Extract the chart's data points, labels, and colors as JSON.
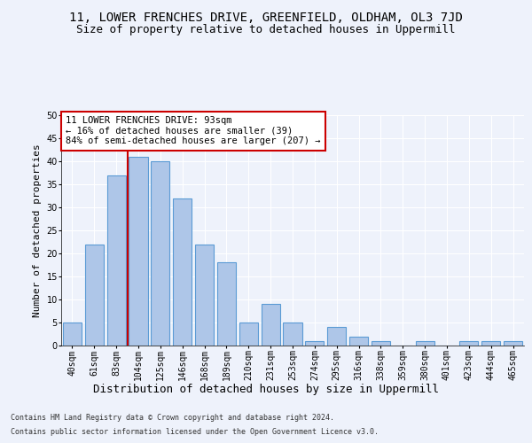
{
  "title1": "11, LOWER FRENCHES DRIVE, GREENFIELD, OLDHAM, OL3 7JD",
  "title2": "Size of property relative to detached houses in Uppermill",
  "xlabel": "Distribution of detached houses by size in Uppermill",
  "ylabel": "Number of detached properties",
  "categories": [
    "40sqm",
    "61sqm",
    "83sqm",
    "104sqm",
    "125sqm",
    "146sqm",
    "168sqm",
    "189sqm",
    "210sqm",
    "231sqm",
    "253sqm",
    "274sqm",
    "295sqm",
    "316sqm",
    "338sqm",
    "359sqm",
    "380sqm",
    "401sqm",
    "423sqm",
    "444sqm",
    "465sqm"
  ],
  "values": [
    5,
    22,
    37,
    41,
    40,
    32,
    22,
    18,
    5,
    9,
    5,
    1,
    4,
    2,
    1,
    0,
    1,
    0,
    1,
    1,
    1
  ],
  "bar_color": "#aec6e8",
  "bar_edge_color": "#5b9bd5",
  "ylim": [
    0,
    50
  ],
  "yticks": [
    0,
    5,
    10,
    15,
    20,
    25,
    30,
    35,
    40,
    45,
    50
  ],
  "red_line_x": 2.5,
  "annotation_text": "11 LOWER FRENCHES DRIVE: 93sqm\n← 16% of detached houses are smaller (39)\n84% of semi-detached houses are larger (207) →",
  "annotation_box_color": "#ffffff",
  "annotation_box_edge": "#cc0000",
  "red_line_color": "#cc0000",
  "footer1": "Contains HM Land Registry data © Crown copyright and database right 2024.",
  "footer2": "Contains public sector information licensed under the Open Government Licence v3.0.",
  "background_color": "#eef2fb",
  "grid_color": "#ffffff",
  "title1_fontsize": 10,
  "title2_fontsize": 9,
  "xlabel_fontsize": 9,
  "ylabel_fontsize": 8,
  "tick_fontsize": 7,
  "annotation_fontsize": 7.5,
  "footer_fontsize": 6
}
